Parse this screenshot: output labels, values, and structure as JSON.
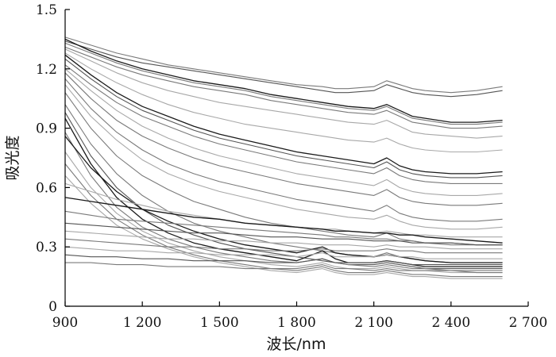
{
  "chart_data": {
    "type": "line",
    "title": "",
    "xlabel": "波长/nm",
    "ylabel": "吸光度",
    "xlim": [
      900,
      2700
    ],
    "ylim": [
      0,
      1.5
    ],
    "x_ticks": [
      900,
      1200,
      1500,
      1800,
      2100,
      2400,
      2700
    ],
    "x_tick_labels": [
      "900",
      "1 200",
      "1 500",
      "1 800",
      "2 100",
      "2 400",
      "2 700"
    ],
    "y_ticks": [
      0,
      0.3,
      0.6,
      0.9,
      1.2,
      1.5
    ],
    "y_tick_labels": [
      "0",
      "0.3",
      "0.6",
      "0.9",
      "1.2",
      "1.5"
    ],
    "x": [
      900,
      1000,
      1100,
      1200,
      1300,
      1400,
      1500,
      1600,
      1700,
      1800,
      1900,
      1950,
      2000,
      2100,
      2150,
      2200,
      2250,
      2300,
      2400,
      2500,
      2600
    ],
    "grid": false,
    "legend": "none",
    "colors": {
      "dark": "#1a1a1a",
      "mid": "#555555",
      "gray": "#7a7a7a",
      "light": "#a8a8a8"
    },
    "series": [
      {
        "values": [
          1.36,
          1.32,
          1.28,
          1.25,
          1.22,
          1.2,
          1.18,
          1.16,
          1.14,
          1.12,
          1.11,
          1.1,
          1.1,
          1.11,
          1.14,
          1.12,
          1.1,
          1.09,
          1.08,
          1.09,
          1.11
        ],
        "color": "gray"
      },
      {
        "values": [
          1.34,
          1.3,
          1.26,
          1.23,
          1.21,
          1.19,
          1.17,
          1.15,
          1.13,
          1.11,
          1.09,
          1.08,
          1.08,
          1.09,
          1.12,
          1.1,
          1.08,
          1.07,
          1.06,
          1.07,
          1.09
        ],
        "color": "mid"
      },
      {
        "values": [
          1.35,
          1.29,
          1.24,
          1.2,
          1.17,
          1.14,
          1.12,
          1.1,
          1.07,
          1.05,
          1.03,
          1.02,
          1.01,
          1.0,
          1.02,
          0.99,
          0.96,
          0.95,
          0.93,
          0.93,
          0.94
        ],
        "color": "dark"
      },
      {
        "values": [
          1.33,
          1.28,
          1.23,
          1.19,
          1.16,
          1.13,
          1.11,
          1.09,
          1.06,
          1.04,
          1.02,
          1.01,
          1.0,
          0.99,
          1.01,
          0.98,
          0.95,
          0.94,
          0.92,
          0.92,
          0.93
        ],
        "color": "gray"
      },
      {
        "values": [
          1.31,
          1.26,
          1.21,
          1.17,
          1.14,
          1.11,
          1.09,
          1.07,
          1.04,
          1.02,
          1.0,
          0.99,
          0.98,
          0.97,
          0.99,
          0.96,
          0.93,
          0.92,
          0.9,
          0.9,
          0.91
        ],
        "color": "gray"
      },
      {
        "values": [
          1.3,
          1.24,
          1.18,
          1.13,
          1.09,
          1.06,
          1.03,
          1.01,
          0.99,
          0.97,
          0.95,
          0.94,
          0.93,
          0.92,
          0.94,
          0.91,
          0.88,
          0.87,
          0.86,
          0.85,
          0.86
        ],
        "color": "light"
      },
      {
        "values": [
          1.28,
          1.2,
          1.13,
          1.07,
          1.02,
          0.98,
          0.95,
          0.92,
          0.9,
          0.88,
          0.86,
          0.85,
          0.84,
          0.83,
          0.85,
          0.82,
          0.8,
          0.79,
          0.78,
          0.78,
          0.79
        ],
        "color": "light"
      },
      {
        "values": [
          1.27,
          1.17,
          1.08,
          1.01,
          0.96,
          0.91,
          0.87,
          0.84,
          0.81,
          0.78,
          0.76,
          0.75,
          0.74,
          0.72,
          0.75,
          0.71,
          0.69,
          0.68,
          0.67,
          0.67,
          0.68
        ],
        "color": "dark"
      },
      {
        "values": [
          1.25,
          1.15,
          1.06,
          0.99,
          0.94,
          0.89,
          0.85,
          0.82,
          0.79,
          0.76,
          0.74,
          0.73,
          0.72,
          0.7,
          0.73,
          0.69,
          0.67,
          0.66,
          0.65,
          0.65,
          0.66
        ],
        "color": "mid"
      },
      {
        "values": [
          1.22,
          1.12,
          1.03,
          0.96,
          0.91,
          0.86,
          0.82,
          0.79,
          0.76,
          0.73,
          0.71,
          0.7,
          0.69,
          0.67,
          0.7,
          0.66,
          0.64,
          0.63,
          0.62,
          0.62,
          0.62
        ],
        "color": "gray"
      },
      {
        "values": [
          1.2,
          1.09,
          0.99,
          0.91,
          0.85,
          0.8,
          0.76,
          0.73,
          0.7,
          0.67,
          0.65,
          0.64,
          0.63,
          0.61,
          0.64,
          0.6,
          0.58,
          0.57,
          0.56,
          0.56,
          0.57
        ],
        "color": "light"
      },
      {
        "values": [
          1.18,
          1.05,
          0.94,
          0.86,
          0.8,
          0.75,
          0.71,
          0.68,
          0.65,
          0.62,
          0.6,
          0.59,
          0.58,
          0.56,
          0.59,
          0.55,
          0.53,
          0.52,
          0.51,
          0.51,
          0.52
        ],
        "color": "gray"
      },
      {
        "values": [
          1.15,
          1.0,
          0.88,
          0.79,
          0.72,
          0.67,
          0.63,
          0.6,
          0.57,
          0.54,
          0.52,
          0.51,
          0.5,
          0.48,
          0.51,
          0.47,
          0.45,
          0.44,
          0.43,
          0.43,
          0.44
        ],
        "color": "gray"
      },
      {
        "values": [
          1.12,
          0.96,
          0.84,
          0.74,
          0.67,
          0.62,
          0.58,
          0.55,
          0.52,
          0.49,
          0.47,
          0.46,
          0.45,
          0.44,
          0.46,
          0.43,
          0.41,
          0.4,
          0.39,
          0.39,
          0.4
        ],
        "color": "light"
      },
      {
        "values": [
          1.08,
          0.9,
          0.76,
          0.66,
          0.59,
          0.53,
          0.49,
          0.45,
          0.42,
          0.4,
          0.38,
          0.37,
          0.36,
          0.35,
          0.37,
          0.34,
          0.33,
          0.32,
          0.31,
          0.31,
          0.31
        ],
        "color": "gray"
      },
      {
        "values": [
          1.02,
          0.82,
          0.67,
          0.56,
          0.48,
          0.42,
          0.38,
          0.35,
          0.32,
          0.3,
          0.28,
          0.27,
          0.26,
          0.25,
          0.27,
          0.25,
          0.24,
          0.23,
          0.22,
          0.22,
          0.22
        ],
        "color": "gray"
      },
      {
        "values": [
          0.98,
          0.76,
          0.6,
          0.49,
          0.41,
          0.36,
          0.32,
          0.29,
          0.27,
          0.25,
          0.23,
          0.22,
          0.21,
          0.21,
          0.22,
          0.21,
          0.2,
          0.19,
          0.19,
          0.19,
          0.19
        ],
        "color": "mid"
      },
      {
        "values": [
          0.95,
          0.72,
          0.55,
          0.44,
          0.37,
          0.32,
          0.29,
          0.27,
          0.25,
          0.23,
          0.28,
          0.24,
          0.22,
          0.22,
          0.23,
          0.22,
          0.21,
          0.2,
          0.2,
          0.2,
          0.2
        ],
        "color": "dark"
      },
      {
        "values": [
          0.88,
          0.66,
          0.5,
          0.4,
          0.34,
          0.3,
          0.27,
          0.25,
          0.23,
          0.22,
          0.24,
          0.22,
          0.21,
          0.2,
          0.21,
          0.2,
          0.19,
          0.19,
          0.18,
          0.18,
          0.18
        ],
        "color": "gray"
      },
      {
        "values": [
          0.86,
          0.7,
          0.58,
          0.49,
          0.43,
          0.38,
          0.34,
          0.31,
          0.29,
          0.27,
          0.3,
          0.27,
          0.26,
          0.25,
          0.26,
          0.25,
          0.24,
          0.23,
          0.22,
          0.22,
          0.22
        ],
        "color": "dark"
      },
      {
        "values": [
          0.78,
          0.6,
          0.47,
          0.38,
          0.32,
          0.28,
          0.25,
          0.23,
          0.21,
          0.2,
          0.22,
          0.2,
          0.19,
          0.19,
          0.2,
          0.19,
          0.18,
          0.18,
          0.17,
          0.17,
          0.17
        ],
        "color": "light"
      },
      {
        "values": [
          0.72,
          0.56,
          0.44,
          0.36,
          0.3,
          0.26,
          0.23,
          0.21,
          0.19,
          0.18,
          0.2,
          0.18,
          0.17,
          0.17,
          0.18,
          0.17,
          0.16,
          0.16,
          0.15,
          0.15,
          0.15
        ],
        "color": "gray"
      },
      {
        "values": [
          0.66,
          0.52,
          0.41,
          0.34,
          0.29,
          0.25,
          0.22,
          0.2,
          0.18,
          0.17,
          0.19,
          0.17,
          0.16,
          0.16,
          0.17,
          0.16,
          0.15,
          0.15,
          0.14,
          0.14,
          0.14
        ],
        "color": "light"
      },
      {
        "values": [
          0.62,
          0.58,
          0.54,
          0.51,
          0.48,
          0.46,
          0.44,
          0.42,
          0.41,
          0.4,
          0.39,
          0.39,
          0.38,
          0.37,
          0.38,
          0.37,
          0.36,
          0.36,
          0.35,
          0.35,
          0.35
        ],
        "color": "light"
      },
      {
        "values": [
          0.55,
          0.53,
          0.51,
          0.49,
          0.47,
          0.45,
          0.44,
          0.42,
          0.41,
          0.4,
          0.39,
          0.38,
          0.38,
          0.37,
          0.37,
          0.36,
          0.36,
          0.35,
          0.34,
          0.33,
          0.32
        ],
        "color": "dark"
      },
      {
        "values": [
          0.48,
          0.46,
          0.44,
          0.43,
          0.42,
          0.41,
          0.4,
          0.39,
          0.38,
          0.37,
          0.36,
          0.35,
          0.35,
          0.34,
          0.34,
          0.33,
          0.33,
          0.32,
          0.32,
          0.31,
          0.31
        ],
        "color": "gray"
      },
      {
        "values": [
          0.42,
          0.41,
          0.4,
          0.39,
          0.38,
          0.37,
          0.37,
          0.36,
          0.35,
          0.35,
          0.34,
          0.34,
          0.34,
          0.33,
          0.33,
          0.33,
          0.32,
          0.32,
          0.32,
          0.31,
          0.31
        ],
        "color": "mid"
      },
      {
        "values": [
          0.38,
          0.37,
          0.36,
          0.35,
          0.34,
          0.34,
          0.33,
          0.33,
          0.32,
          0.32,
          0.31,
          0.31,
          0.31,
          0.3,
          0.31,
          0.3,
          0.3,
          0.3,
          0.29,
          0.29,
          0.29
        ],
        "color": "light"
      },
      {
        "values": [
          0.34,
          0.33,
          0.32,
          0.31,
          0.3,
          0.3,
          0.29,
          0.29,
          0.28,
          0.28,
          0.29,
          0.28,
          0.28,
          0.28,
          0.29,
          0.28,
          0.28,
          0.27,
          0.27,
          0.27,
          0.27
        ],
        "color": "gray"
      },
      {
        "values": [
          0.3,
          0.29,
          0.28,
          0.28,
          0.27,
          0.27,
          0.26,
          0.26,
          0.26,
          0.25,
          0.27,
          0.25,
          0.25,
          0.25,
          0.26,
          0.25,
          0.25,
          0.24,
          0.24,
          0.24,
          0.24
        ],
        "color": "light"
      },
      {
        "values": [
          0.26,
          0.25,
          0.25,
          0.24,
          0.24,
          0.23,
          0.23,
          0.23,
          0.22,
          0.22,
          0.24,
          0.22,
          0.22,
          0.22,
          0.23,
          0.22,
          0.21,
          0.21,
          0.21,
          0.21,
          0.21
        ],
        "color": "mid"
      },
      {
        "values": [
          0.22,
          0.22,
          0.21,
          0.21,
          0.2,
          0.2,
          0.2,
          0.19,
          0.19,
          0.19,
          0.21,
          0.19,
          0.19,
          0.18,
          0.19,
          0.18,
          0.18,
          0.18,
          0.18,
          0.17,
          0.17
        ],
        "color": "gray"
      }
    ]
  }
}
